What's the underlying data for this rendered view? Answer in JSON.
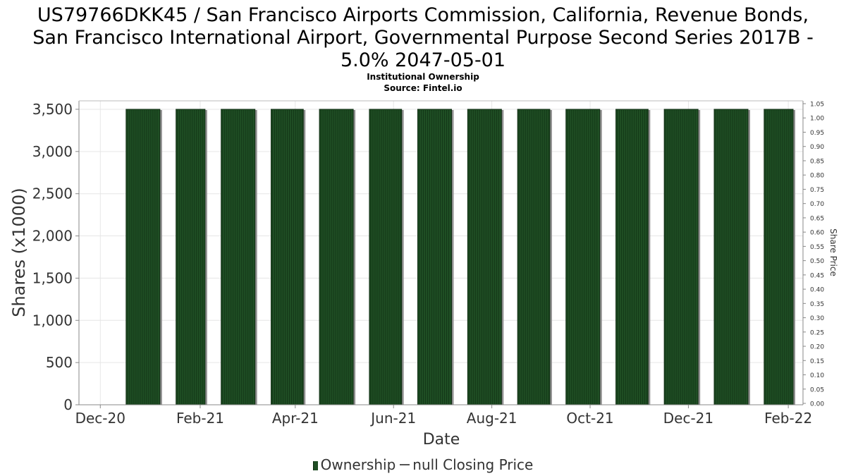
{
  "chart_data": {
    "type": "bar",
    "title": "US79766DKK45 / San Francisco Airports Commission, California, Revenue Bonds, San Francisco International Airport, Governmental Purpose Second Series 2017B - 5.0% 2047-05-01",
    "title_lines": [
      "US79766DKK45 / San Francisco Airports Commission, California, Revenue Bonds,",
      "San Francisco International Airport, Governmental Purpose Second Series 2017B -",
      "5.0% 2047-05-01"
    ],
    "subtitle_lines": [
      "Institutional Ownership",
      "Source: Fintel.io"
    ],
    "xlabel": "Date",
    "ylabel": "Shares (x1000)",
    "y2label": "Share Price",
    "ylim": [
      0,
      3600
    ],
    "y2lim": [
      0,
      1.05
    ],
    "yticks": [
      0,
      500,
      1000,
      1500,
      2000,
      2500,
      3000,
      3500
    ],
    "yticks_labels": [
      "0",
      "500",
      "1,000",
      "1,500",
      "2,000",
      "2,500",
      "3,000",
      "3,500"
    ],
    "y2ticks_labels": [
      "0.00",
      "0.05",
      "0.10",
      "0.15",
      "0.20",
      "0.25",
      "0.30",
      "0.35",
      "0.40",
      "0.45",
      "0.50",
      "0.55",
      "0.60",
      "0.65",
      "0.70",
      "0.75",
      "0.80",
      "0.85",
      "0.90",
      "0.95",
      "1.00",
      "1.05"
    ],
    "x_range_days": [
      -8,
      430
    ],
    "xticks": [
      {
        "label": "Dec-20",
        "day": 0
      },
      {
        "label": "Feb-21",
        "day": 62
      },
      {
        "label": "Apr-21",
        "day": 121
      },
      {
        "label": "Jun-21",
        "day": 182
      },
      {
        "label": "Aug-21",
        "day": 243
      },
      {
        "label": "Oct-21",
        "day": 304
      },
      {
        "label": "Dec-21",
        "day": 365
      },
      {
        "label": "Feb-22",
        "day": 427
      }
    ],
    "series": [
      {
        "name": "Ownership",
        "color": "#1f4e24",
        "bars": [
          {
            "start_day": 16,
            "end_day": 37,
            "value": 3500
          },
          {
            "start_day": 47,
            "end_day": 65,
            "value": 3500
          },
          {
            "start_day": 75,
            "end_day": 96,
            "value": 3500
          },
          {
            "start_day": 106,
            "end_day": 126,
            "value": 3500
          },
          {
            "start_day": 136,
            "end_day": 157,
            "value": 3500
          },
          {
            "start_day": 167,
            "end_day": 187,
            "value": 3500
          },
          {
            "start_day": 197,
            "end_day": 218,
            "value": 3500
          },
          {
            "start_day": 228,
            "end_day": 249,
            "value": 3500
          },
          {
            "start_day": 259,
            "end_day": 279,
            "value": 3500
          },
          {
            "start_day": 289,
            "end_day": 310,
            "value": 3500
          },
          {
            "start_day": 320,
            "end_day": 340,
            "value": 3500
          },
          {
            "start_day": 350,
            "end_day": 371,
            "value": 3500
          },
          {
            "start_day": 381,
            "end_day": 402,
            "value": 3500
          },
          {
            "start_day": 412,
            "end_day": 430,
            "value": 3500
          }
        ]
      },
      {
        "name": "null Closing Price",
        "color": "#555555",
        "values": []
      }
    ],
    "legend": {
      "position": "bottom-center",
      "items": [
        "Ownership",
        "null Closing Price"
      ]
    },
    "grid": true
  }
}
